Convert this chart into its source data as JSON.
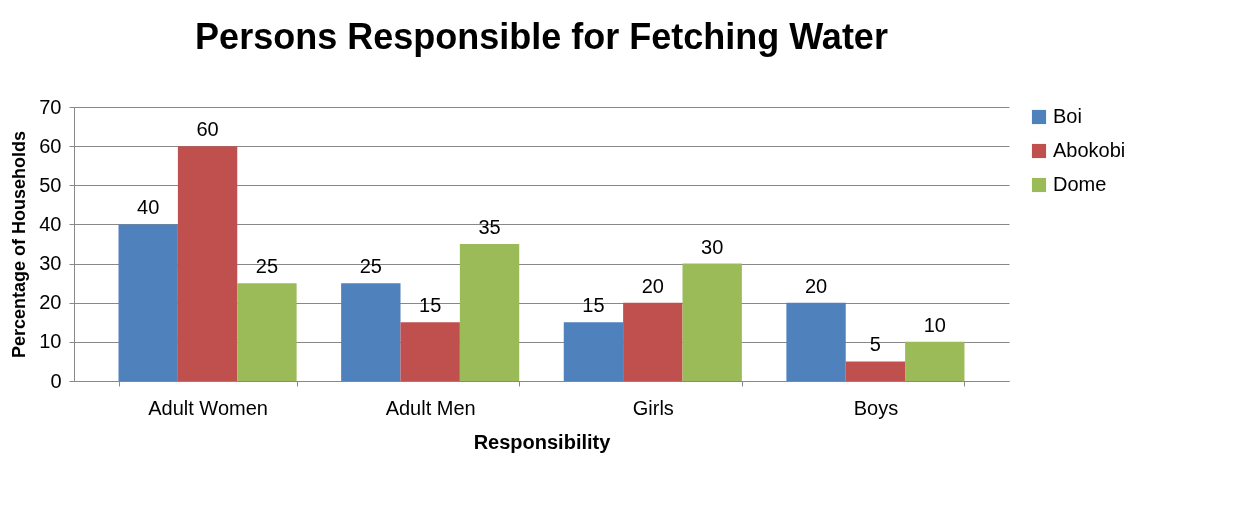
{
  "chart_data": {
    "type": "bar",
    "title": "Persons Responsible for Fetching Water",
    "xlabel": "Responsibility",
    "ylabel": "Percentage of Households",
    "categories": [
      "Adult Women",
      "Adult Men",
      "Girls",
      "Boys"
    ],
    "series": [
      {
        "name": "Boi",
        "color": "#4f81bd",
        "values": [
          40,
          25,
          15,
          20
        ]
      },
      {
        "name": "Abokobi",
        "color": "#c0504d",
        "values": [
          60,
          15,
          20,
          5
        ]
      },
      {
        "name": "Dome",
        "color": "#9bbb59",
        "values": [
          25,
          35,
          30,
          10
        ]
      }
    ],
    "ylim": [
      0,
      70
    ],
    "yticks": [
      0,
      10,
      20,
      30,
      40,
      50,
      60,
      70
    ],
    "grid": "y",
    "legend": "right",
    "data_labels": true
  }
}
